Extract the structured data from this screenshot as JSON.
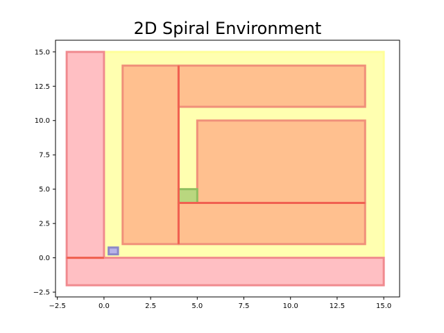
{
  "chart_data": {
    "type": "rectangles",
    "title": "2D Spiral Environment",
    "xlabel": "",
    "ylabel": "",
    "xlim": [
      -2.6,
      15.85
    ],
    "ylim": [
      -2.85,
      15.85
    ],
    "grid": false,
    "legend": "none",
    "xticks": [
      -2.5,
      0.0,
      2.5,
      5.0,
      7.5,
      10.0,
      12.5,
      15.0
    ],
    "xtick_labels": [
      "−2.5",
      "0.0",
      "2.5",
      "5.0",
      "7.5",
      "10.0",
      "12.5",
      "15.0"
    ],
    "yticks": [
      -2.5,
      0.0,
      2.5,
      5.0,
      7.5,
      10.0,
      12.5,
      15.0
    ],
    "ytick_labels": [
      "−2.5",
      "0.0",
      "2.5",
      "5.0",
      "7.5",
      "10.0",
      "12.5",
      "15.0"
    ],
    "rectangles": [
      {
        "role": "workspace",
        "x0": 0,
        "y0": 0,
        "x1": 15,
        "y1": 15,
        "fill": "#ffffb0",
        "stroke": "#ffff99"
      },
      {
        "role": "left-wall",
        "x0": -2,
        "y0": 0,
        "x1": 0,
        "y1": 15,
        "fill": "#ffbfc3",
        "stroke": "#f08a8f"
      },
      {
        "role": "bottom-wall",
        "x0": -2,
        "y0": -2,
        "x1": 15,
        "y1": 0,
        "fill": "#ffbfc3",
        "stroke": "#f08a8f"
      },
      {
        "role": "inner-left",
        "x0": 1,
        "y0": 1,
        "x1": 4,
        "y1": 14,
        "fill": "#ffc08f",
        "stroke": "#f0907a"
      },
      {
        "role": "inner-top",
        "x0": 4,
        "y0": 11,
        "x1": 14,
        "y1": 14,
        "fill": "#ffc08f",
        "stroke": "#f0907a"
      },
      {
        "role": "inner-bottom",
        "x0": 4,
        "y0": 1,
        "x1": 14,
        "y1": 4,
        "fill": "#ffc08f",
        "stroke": "#f0907a"
      },
      {
        "role": "inner-right",
        "x0": 5,
        "y0": 4,
        "x1": 14,
        "y1": 10,
        "fill": "#ffc08f",
        "stroke": "#f0907a"
      },
      {
        "role": "goal",
        "x0": 4,
        "y0": 4,
        "x1": 5,
        "y1": 5,
        "fill": "#b9d77f",
        "stroke": "#8fbf5f"
      },
      {
        "role": "start",
        "x0": 0.25,
        "y0": 0.25,
        "x1": 0.75,
        "y1": 0.75,
        "fill": "#b7b3e8",
        "stroke": "#8c88c8"
      }
    ],
    "segments": [
      {
        "x0": -2,
        "y0": 0,
        "x1": 0,
        "y1": 0,
        "color": "#f06050"
      },
      {
        "x0": 4,
        "y0": 1,
        "x1": 4,
        "y1": 14,
        "color": "#f06050"
      },
      {
        "x0": 4,
        "y0": 4,
        "x1": 14,
        "y1": 4,
        "color": "#f06050"
      }
    ]
  }
}
